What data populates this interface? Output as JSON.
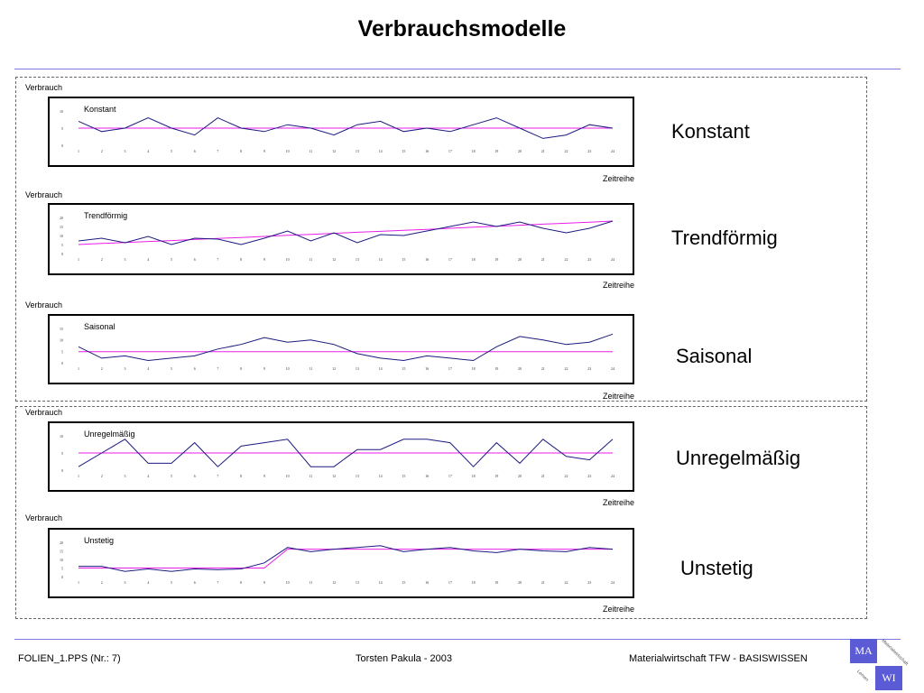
{
  "title": "Verbrauchsmodelle",
  "footer": {
    "left": "FOLIEN_1.PPS (Nr.: 7)",
    "center": "Torsten Pakula - 2003",
    "right": "Materialwirtschaft TFW - BASISWISSEN"
  },
  "logo": {
    "top": "MA",
    "bottom": "WI",
    "diag1": "Materialwirtschaft",
    "diag2": "Lernen"
  },
  "colors": {
    "series": "#1a1a80",
    "avg": "#e81ee8",
    "rule": "#7a7ae6"
  },
  "chart_data": [
    {
      "type": "line",
      "title": "Konstant",
      "label": "Konstant",
      "ylabel": "Verbrauch",
      "xlabel": "Zeitreihe",
      "yticks": [
        "0",
        "5",
        "10"
      ],
      "ylim": [
        0,
        10
      ],
      "x": [
        "1",
        "2",
        "3",
        "4",
        "5",
        "6",
        "7",
        "8",
        "9",
        "10",
        "11",
        "12",
        "13",
        "14",
        "15",
        "16",
        "17",
        "18",
        "19",
        "20",
        "21",
        "22",
        "23",
        "24"
      ],
      "series": [
        {
          "values": [
            7,
            4,
            5,
            8,
            5,
            3,
            8,
            5,
            4,
            6,
            5,
            3,
            6,
            7,
            4,
            5,
            4,
            6,
            8,
            5,
            2,
            3,
            6,
            5
          ]
        },
        {
          "values": [
            5,
            5,
            5,
            5,
            5,
            5,
            5,
            5,
            5,
            5,
            5,
            5,
            5,
            5,
            5,
            5,
            5,
            5,
            5,
            5,
            5,
            5,
            5,
            5
          ]
        }
      ]
    },
    {
      "type": "line",
      "title": "Trendförmig",
      "label": "Trendförmig",
      "ylabel": "Verbrauch",
      "xlabel": "Zeitreihe",
      "yticks": [
        "0",
        "5",
        "10",
        "15",
        "20"
      ],
      "ylim": [
        0,
        20
      ],
      "x": [
        "1",
        "2",
        "3",
        "4",
        "5",
        "6",
        "7",
        "8",
        "9",
        "10",
        "11",
        "12",
        "13",
        "14",
        "15",
        "16",
        "17",
        "18",
        "19",
        "20",
        "21",
        "22",
        "23",
        "24"
      ],
      "series": [
        {
          "values": [
            7,
            8.5,
            6,
            9.5,
            5,
            8.5,
            8,
            5,
            8.5,
            12.5,
            7,
            11.5,
            6,
            10.5,
            10,
            12.5,
            15,
            17.5,
            15,
            17.5,
            14,
            11.5,
            14,
            18
          ]
        },
        {
          "values": [
            5,
            5.6,
            6.1,
            6.7,
            7.2,
            7.8,
            8.4,
            8.9,
            9.5,
            10.1,
            10.6,
            11.2,
            11.8,
            12.3,
            12.9,
            13.4,
            14,
            14.6,
            15.1,
            15.7,
            16.3,
            16.8,
            17.4,
            18
          ]
        }
      ]
    },
    {
      "type": "line",
      "title": "Saisonal",
      "label": "Saisonal",
      "ylabel": "Verbrauch",
      "xlabel": "Zeitreihe",
      "yticks": [
        "0",
        "5",
        "10",
        "15"
      ],
      "ylim": [
        0,
        15
      ],
      "x": [
        "1",
        "2",
        "3",
        "4",
        "5",
        "6",
        "7",
        "8",
        "9",
        "10",
        "11",
        "12",
        "13",
        "14",
        "15",
        "16",
        "17",
        "18",
        "19",
        "20",
        "21",
        "22",
        "23",
        "24"
      ],
      "series": [
        {
          "values": [
            7,
            2,
            3,
            1,
            2,
            3,
            6,
            8,
            11,
            9,
            10,
            8,
            4,
            2,
            1,
            3,
            2,
            1,
            7,
            11.5,
            10,
            8,
            9,
            12.5
          ]
        },
        {
          "values": [
            4.8,
            4.8,
            4.8,
            4.8,
            4.8,
            4.8,
            4.8,
            4.8,
            4.8,
            4.8,
            4.8,
            4.8,
            4.8,
            4.8,
            4.8,
            4.8,
            4.8,
            4.8,
            4.8,
            4.8,
            4.8,
            4.8,
            4.8,
            4.8
          ]
        }
      ]
    },
    {
      "type": "line",
      "title": "Unregelmäßig",
      "label": "Unregelmäßig",
      "ylabel": "Verbrauch",
      "xlabel": "Zeitreihe",
      "yticks": [
        "0",
        "5",
        "10"
      ],
      "ylim": [
        0,
        10
      ],
      "x": [
        "1",
        "2",
        "3",
        "4",
        "5",
        "6",
        "7",
        "8",
        "9",
        "10",
        "11",
        "12",
        "13",
        "14",
        "15",
        "16",
        "17",
        "18",
        "19",
        "20",
        "21",
        "22",
        "23",
        "24"
      ],
      "series": [
        {
          "values": [
            1,
            5,
            9,
            2,
            2,
            8,
            1,
            7,
            8,
            9,
            1,
            1,
            6,
            6,
            9,
            9,
            8,
            1,
            8,
            2,
            9,
            4,
            3,
            9
          ]
        },
        {
          "values": [
            5,
            5,
            5,
            5,
            5,
            5,
            5,
            5,
            5,
            5,
            5,
            5,
            5,
            5,
            5,
            5,
            5,
            5,
            5,
            5,
            5,
            5,
            5,
            5
          ]
        }
      ]
    },
    {
      "type": "line",
      "title": "Unstetig",
      "label": "Unstetig",
      "ylabel": "Verbrauch",
      "xlabel": "Zeitreihe",
      "yticks": [
        "0",
        "5",
        "10",
        "15",
        "20"
      ],
      "ylim": [
        0,
        20
      ],
      "x": [
        "1",
        "2",
        "3",
        "4",
        "5",
        "6",
        "7",
        "8",
        "9",
        "10",
        "11",
        "12",
        "13",
        "14",
        "15",
        "16",
        "17",
        "18",
        "19",
        "20",
        "21",
        "22",
        "23",
        "24"
      ],
      "series": [
        {
          "values": [
            6,
            6,
            3,
            4.5,
            3,
            4.5,
            4,
            4.5,
            8,
            17,
            14.5,
            16,
            17,
            18,
            14.5,
            16,
            17,
            15,
            14,
            16,
            15,
            14.5,
            17,
            16
          ]
        },
        {
          "values": [
            5,
            5,
            5,
            5,
            5,
            5,
            5,
            5,
            5,
            16,
            16,
            16,
            16,
            16,
            16,
            16,
            16,
            16,
            16,
            16,
            16,
            16,
            16,
            16
          ]
        }
      ]
    }
  ]
}
